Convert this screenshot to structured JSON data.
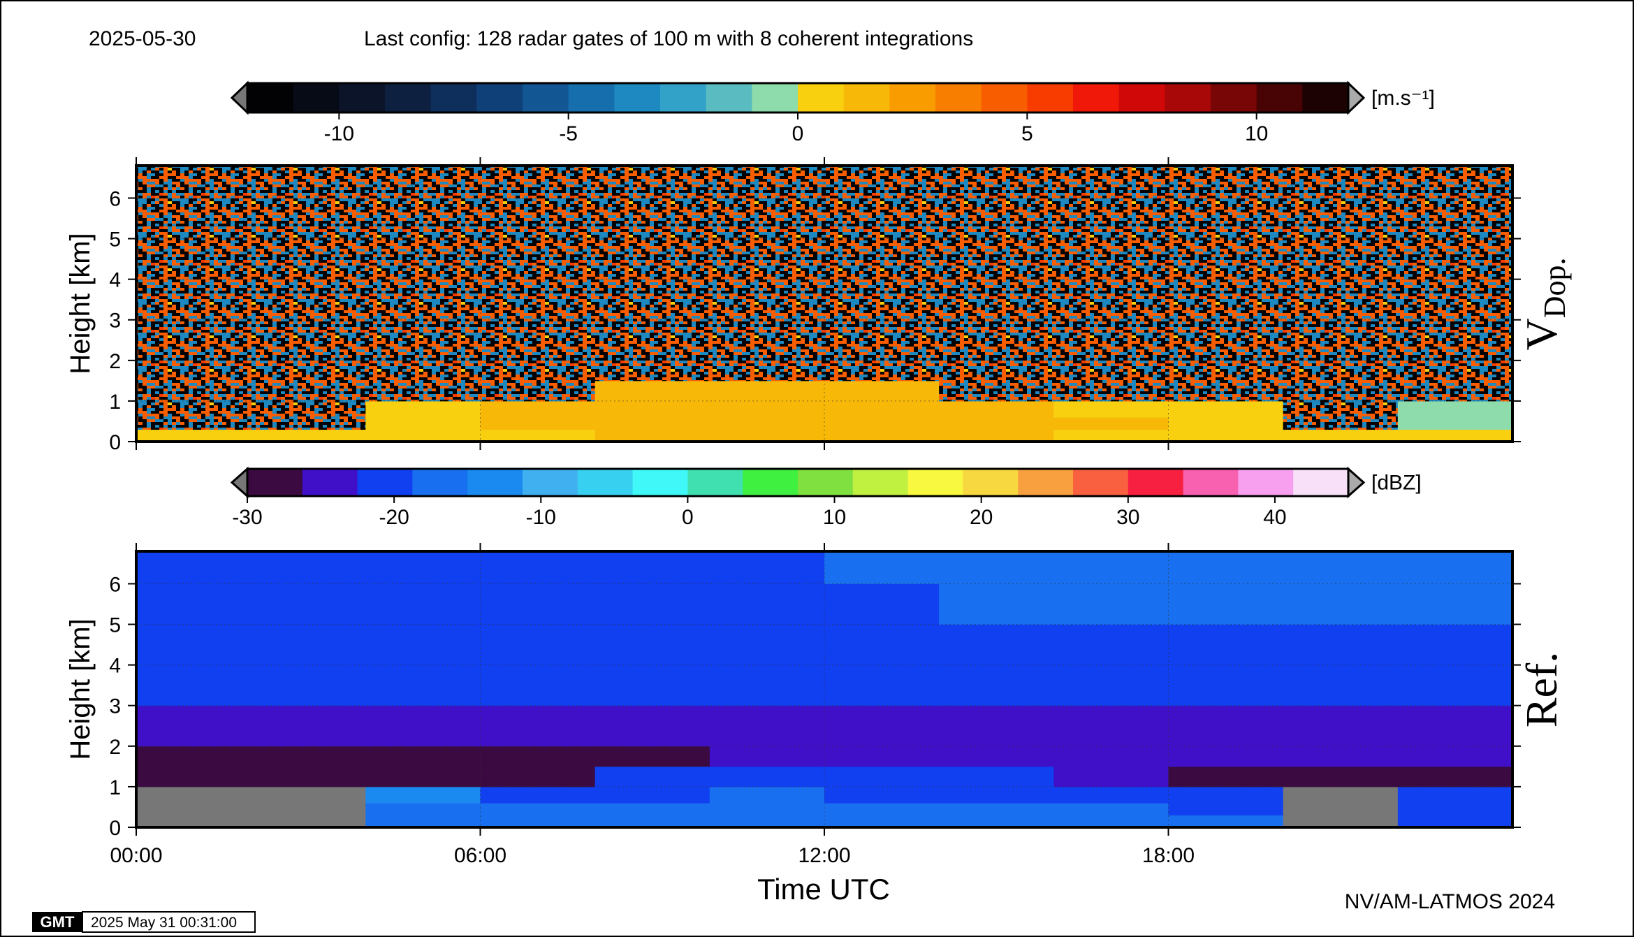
{
  "header": {
    "date": "2025-05-30",
    "config": "Last config: 128 radar gates of 100 m with 8 coherent integrations"
  },
  "chart_data": [
    {
      "type": "heatmap",
      "ylabel": "Height [km]",
      "panel_label": "V",
      "panel_label_sub": "Dop.",
      "xlim": [
        0,
        24
      ],
      "xticks": [
        0,
        6,
        12,
        18
      ],
      "ylim": [
        0,
        6.8
      ],
      "yticks": [
        0,
        1,
        2,
        3,
        4,
        5,
        6
      ],
      "grid": true,
      "x_edges": [
        0,
        2,
        4,
        6,
        8,
        10,
        12,
        14,
        16,
        18,
        20,
        22,
        24
      ],
      "y_edges": [
        0,
        0.3,
        0.6,
        1,
        1.5,
        2,
        3,
        4,
        5,
        6,
        6.8
      ],
      "z": [
        [
          0.5,
          0.5,
          0.5,
          0.8,
          1.2,
          1.5,
          1.5,
          1.2,
          0.8,
          0.5,
          0.5,
          0.5
        ],
        [
          null,
          null,
          0.8,
          1.5,
          1.5,
          1.8,
          1.5,
          1.2,
          1.0,
          0.5,
          null,
          -1
        ],
        [
          null,
          null,
          0.8,
          1.2,
          1.2,
          1.5,
          1.2,
          1.2,
          0.8,
          0.5,
          null,
          -0.5
        ],
        [
          null,
          null,
          null,
          null,
          1.0,
          1.0,
          1.0,
          null,
          null,
          null,
          null,
          null
        ],
        [
          null,
          null,
          null,
          null,
          null,
          null,
          null,
          null,
          null,
          null,
          null,
          null
        ],
        [
          null,
          null,
          null,
          null,
          null,
          null,
          null,
          null,
          null,
          null,
          null,
          null
        ],
        [
          null,
          null,
          null,
          null,
          null,
          null,
          null,
          null,
          null,
          null,
          null,
          null
        ],
        [
          null,
          null,
          null,
          null,
          null,
          null,
          null,
          null,
          null,
          null,
          null,
          null
        ],
        [
          null,
          null,
          null,
          null,
          null,
          null,
          null,
          null,
          null,
          null,
          null,
          null
        ],
        [
          null,
          null,
          null,
          null,
          null,
          null,
          null,
          null,
          null,
          null,
          null,
          null
        ]
      ],
      "colorbar": {
        "lim": [
          -12,
          12
        ],
        "ticks": [
          -10,
          -5,
          0,
          5,
          10
        ],
        "unit": "[m.s⁻¹]",
        "colors": [
          "#020204",
          "#070b16",
          "#0b1428",
          "#0d2040",
          "#0e2e5c",
          "#0f4078",
          "#125694",
          "#166eac",
          "#1e88c0",
          "#32a2c8",
          "#5abcc0",
          "#8edcac",
          "#f8d010",
          "#f8b808",
          "#f89c00",
          "#f87e00",
          "#f85e00",
          "#f83c00",
          "#f01808",
          "#d00808",
          "#a80808",
          "#780606",
          "#480404",
          "#1c0202"
        ]
      }
    },
    {
      "type": "heatmap",
      "ylabel": "Height [km]",
      "xlabel": "Time UTC",
      "panel_label": "Ref.",
      "xlim": [
        0,
        24
      ],
      "xticks": [
        {
          "value": 0,
          "label": "00:00"
        },
        {
          "value": 6,
          "label": "06:00"
        },
        {
          "value": 12,
          "label": "12:00"
        },
        {
          "value": 18,
          "label": "18:00"
        }
      ],
      "ylim": [
        0,
        6.8
      ],
      "yticks": [
        0,
        1,
        2,
        3,
        4,
        5,
        6
      ],
      "grid": true,
      "x_edges": [
        0,
        2,
        4,
        6,
        8,
        10,
        12,
        14,
        16,
        18,
        20,
        22,
        24
      ],
      "y_edges": [
        0,
        0.3,
        0.6,
        1,
        1.5,
        2,
        3,
        4,
        5,
        6,
        6.8
      ],
      "z": [
        [
          null,
          null,
          -18,
          -18,
          -17,
          -17,
          -17,
          -18,
          -18,
          -18,
          null,
          -22
        ],
        [
          null,
          null,
          -16,
          -17,
          -17,
          -17,
          -17,
          -17,
          -18,
          -19,
          null,
          -20
        ],
        [
          null,
          null,
          -14,
          -19,
          -19,
          -18,
          -19,
          -19,
          -20,
          -21,
          null,
          -21
        ],
        [
          -28,
          -28,
          -28,
          -27,
          -22,
          -22,
          -22,
          -22,
          -26,
          -27,
          -28,
          -28
        ],
        [
          -27,
          -27,
          -27,
          -27,
          -27,
          -26,
          -26,
          -26,
          -26,
          -26,
          -26,
          -26
        ],
        [
          -25,
          -25,
          -25,
          -25,
          -25,
          -24,
          -24,
          -24,
          -24,
          -24,
          -24,
          -24
        ],
        [
          -22,
          -22,
          -22,
          -22,
          -22,
          -22,
          -21,
          -21,
          -21,
          -21,
          -21,
          -21
        ],
        [
          -21,
          -21,
          -21,
          -21,
          -20,
          -20,
          -20,
          -19,
          -19,
          -19,
          -19,
          -19
        ],
        [
          -20,
          -20,
          -20,
          -20,
          -20,
          -20,
          -19,
          -18,
          -18,
          -18,
          -18,
          -18
        ],
        [
          -20,
          -20,
          -20,
          -20,
          -19,
          -19,
          -18,
          -18,
          -17,
          -17,
          -18,
          -18
        ]
      ],
      "colorbar": {
        "lim": [
          -30,
          45
        ],
        "ticks": [
          -30,
          -20,
          -10,
          0,
          10,
          20,
          30,
          40
        ],
        "unit": "[dBZ]",
        "colors": [
          "#3a0a40",
          "#4010c8",
          "#1040f0",
          "#1870f0",
          "#1a8af0",
          "#40b0f0",
          "#38d0f0",
          "#40f8f8",
          "#40e0b0",
          "#40f040",
          "#80e040",
          "#c0f040",
          "#f8f840",
          "#f8d840",
          "#f8a040",
          "#f86040",
          "#f82040",
          "#f860b0",
          "#f8a0f0",
          "#f8e0f8"
        ]
      }
    }
  ],
  "footer": {
    "credit": "NV/AM-LATMOS 2024",
    "logo": "GMT",
    "timestamp": "2025 May 31 00:31:00"
  }
}
